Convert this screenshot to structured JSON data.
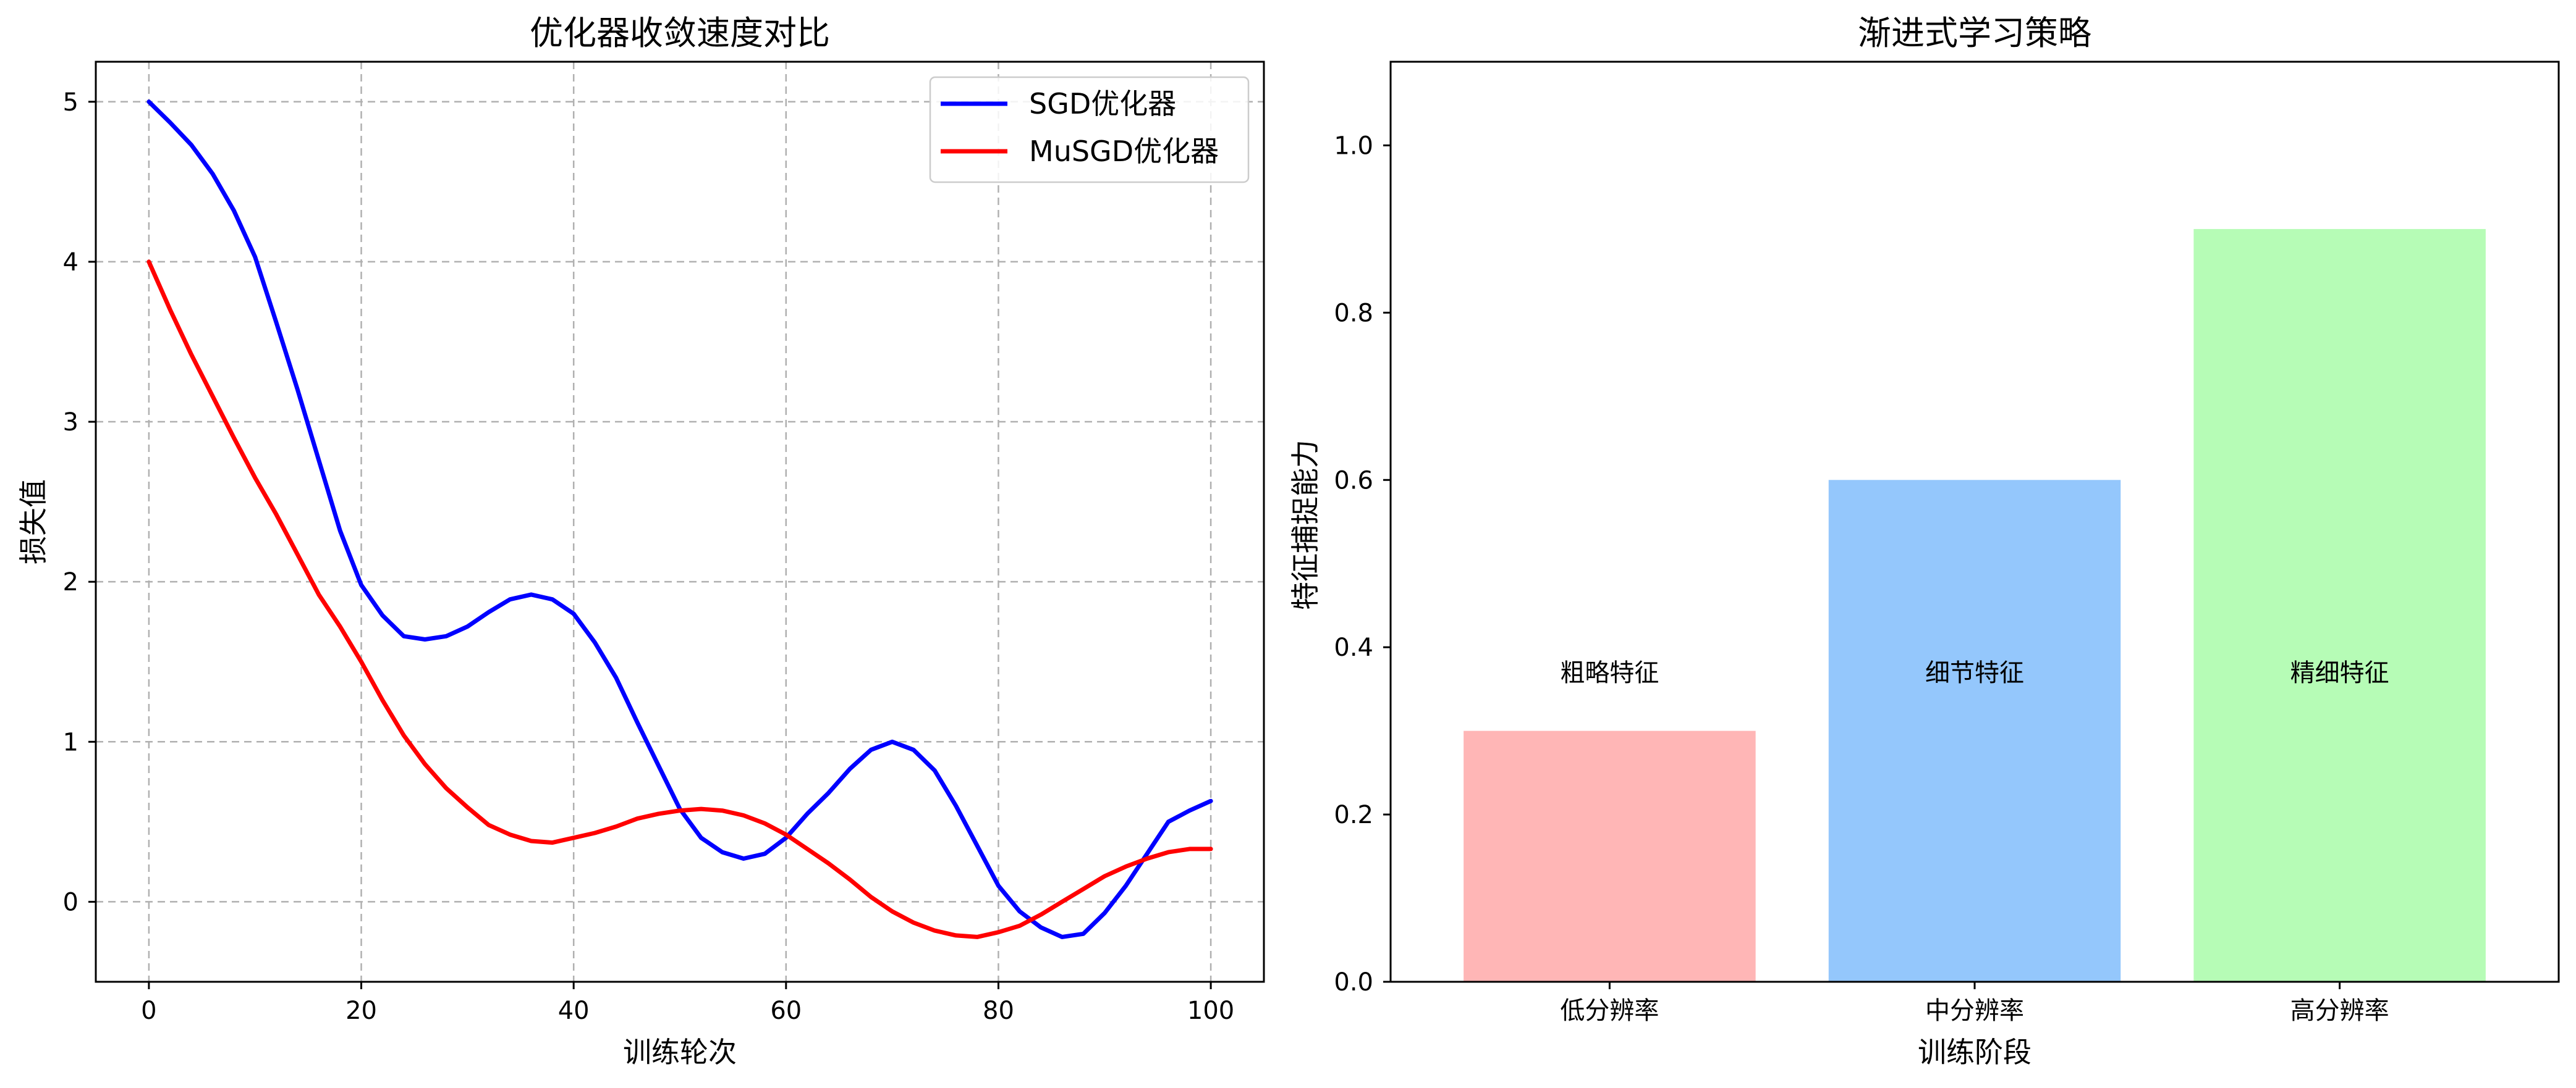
{
  "chart_data": [
    {
      "type": "line",
      "title": "优化器收敛速度对比",
      "xlabel": "训练轮次",
      "ylabel": "损失值",
      "xlim": [
        -5,
        105
      ],
      "ylim": [
        -0.5,
        5.25
      ],
      "xticks": [
        0,
        20,
        40,
        60,
        80,
        100
      ],
      "yticks": [
        0,
        1,
        2,
        3,
        4,
        5
      ],
      "grid": true,
      "legend_position": "top-right",
      "series": [
        {
          "name": "SGD优化器",
          "color": "#0000ff",
          "x": [
            0,
            2,
            4,
            6,
            8,
            10,
            12,
            14,
            16,
            18,
            20,
            22,
            24,
            26,
            28,
            30,
            32,
            34,
            36,
            38,
            40,
            42,
            44,
            46,
            48,
            50,
            52,
            54,
            56,
            58,
            60,
            62,
            64,
            66,
            68,
            70,
            72,
            74,
            76,
            78,
            80,
            82,
            84,
            86,
            88,
            90,
            92,
            94,
            96,
            98,
            100
          ],
          "values": [
            5.0,
            4.87,
            4.73,
            4.55,
            4.32,
            4.03,
            3.62,
            3.2,
            2.76,
            2.32,
            1.98,
            1.79,
            1.66,
            1.64,
            1.66,
            1.72,
            1.81,
            1.89,
            1.92,
            1.89,
            1.8,
            1.62,
            1.4,
            1.12,
            0.85,
            0.58,
            0.4,
            0.31,
            0.27,
            0.3,
            0.4,
            0.55,
            0.68,
            0.83,
            0.95,
            1.0,
            0.95,
            0.82,
            0.6,
            0.35,
            0.1,
            -0.06,
            -0.16,
            -0.22,
            -0.2,
            -0.07,
            0.1,
            0.3,
            0.5,
            0.57,
            0.63
          ]
        },
        {
          "name": "MuSGD优化器",
          "color": "#ff0000",
          "x": [
            0,
            2,
            4,
            6,
            8,
            10,
            12,
            14,
            16,
            18,
            20,
            22,
            24,
            26,
            28,
            30,
            32,
            34,
            36,
            38,
            40,
            42,
            44,
            46,
            48,
            50,
            52,
            54,
            56,
            58,
            60,
            62,
            64,
            66,
            68,
            70,
            72,
            74,
            76,
            78,
            80,
            82,
            84,
            86,
            88,
            90,
            92,
            94,
            96,
            98,
            100
          ],
          "values": [
            4.0,
            3.7,
            3.42,
            3.16,
            2.9,
            2.65,
            2.42,
            2.17,
            1.92,
            1.72,
            1.5,
            1.26,
            1.04,
            0.86,
            0.71,
            0.59,
            0.48,
            0.42,
            0.38,
            0.37,
            0.4,
            0.43,
            0.47,
            0.52,
            0.55,
            0.57,
            0.58,
            0.57,
            0.54,
            0.49,
            0.42,
            0.33,
            0.24,
            0.14,
            0.03,
            -0.06,
            -0.13,
            -0.18,
            -0.21,
            -0.22,
            -0.19,
            -0.15,
            -0.08,
            0.0,
            0.08,
            0.16,
            0.22,
            0.27,
            0.31,
            0.33,
            0.33
          ]
        }
      ]
    },
    {
      "type": "bar",
      "title": "渐进式学习策略",
      "xlabel": "训练阶段",
      "ylabel": "特征捕捉能力",
      "ylim": [
        0,
        1.1
      ],
      "yticks": [
        0.0,
        0.2,
        0.4,
        0.6,
        0.8,
        1.0
      ],
      "grid": false,
      "categories": [
        "低分辨率",
        "中分辨率",
        "高分辨率"
      ],
      "values": [
        0.3,
        0.6,
        0.9
      ],
      "colors": [
        "#ffb6b6",
        "#94c7fc",
        "#b6fcb6"
      ],
      "annotations": [
        "粗略特征",
        "细节特征",
        "精细特征"
      ],
      "annotation_y": 0.37
    }
  ]
}
